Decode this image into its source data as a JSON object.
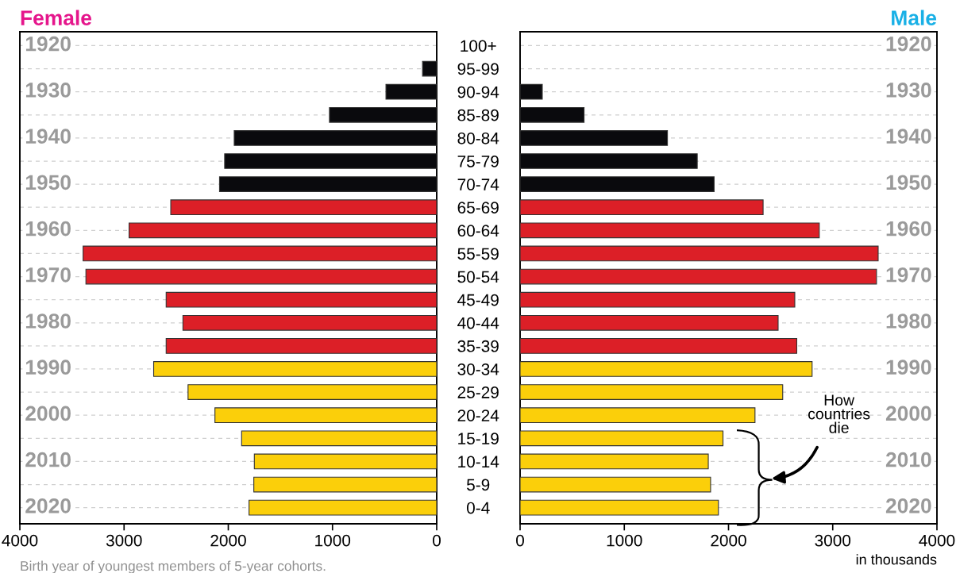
{
  "chart_data": [
    {
      "type": "bar",
      "orientation": "horizontal",
      "title": "Female",
      "tick_labels": "x",
      "grid": "y",
      "categories": [
        null,
        null,
        null,
        null,
        null,
        null,
        null,
        null,
        null,
        null,
        null,
        null,
        null,
        null,
        null,
        null,
        null,
        null,
        null,
        null,
        null
      ],
      "y2_categories": [
        "1920",
        null,
        "1930",
        null,
        "1940",
        null,
        "1950",
        null,
        "1960",
        null,
        "1970",
        null,
        "1980",
        null,
        "1990",
        null,
        "2000",
        null,
        "2010",
        null,
        "2020"
      ],
      "values": [
        null,
        136,
        487,
        1029,
        1943,
        2035,
        2084,
        2552,
        2952,
        3393,
        3366,
        2596,
        2435,
        2596,
        2716,
        2386,
        2128,
        1872,
        1750,
        1755,
        1801
      ],
      "colors": [
        "#0a0a0d",
        "#0a0a0d",
        "#0a0a0d",
        "#0a0a0d",
        "#0a0a0d",
        "#0a0a0d",
        "#0a0a0d",
        "#dc1f27",
        "#dc1f27",
        "#dc1f27",
        "#dc1f27",
        "#dc1f27",
        "#dc1f27",
        "#dc1f27",
        "#fbcf0a",
        "#fbcf0a",
        "#fbcf0a",
        "#fbcf0a",
        "#fbcf0a",
        "#fbcf0a",
        "#fbcf0a"
      ],
      "xlim": [
        4000,
        0
      ],
      "xticks": [
        4000,
        3000,
        2000,
        1000,
        0
      ],
      "annotations": [
        "Birth year of youngest members of 5-year cohorts."
      ]
    },
    {
      "type": "bar",
      "orientation": "horizontal",
      "title": "Male",
      "xlabel": "in thousands",
      "grid": "y",
      "categories": [
        "100+",
        "95-99",
        "90-94",
        "85-89",
        "80-84",
        "75-79",
        "70-74",
        "65-69",
        "60-64",
        "55-59",
        "50-54",
        "45-49",
        "40-44",
        "35-39",
        "30-34",
        "25-29",
        "20-24",
        "15-19",
        "10-14",
        "5-9",
        "0-4"
      ],
      "y2_categories": [
        "1920",
        null,
        "1930",
        null,
        "1940",
        null,
        "1950",
        null,
        "1960",
        null,
        "1970",
        null,
        "1980",
        null,
        "1990",
        null,
        "2000",
        null,
        "2010",
        null,
        "2020"
      ],
      "values": [
        null,
        null,
        213,
        614,
        1414,
        1700,
        1862,
        2332,
        2871,
        3436,
        3420,
        2636,
        2476,
        2655,
        2802,
        2520,
        2254,
        1947,
        1806,
        1828,
        1903
      ],
      "colors": [
        "#0a0a0d",
        "#0a0a0d",
        "#0a0a0d",
        "#0a0a0d",
        "#0a0a0d",
        "#0a0a0d",
        "#0a0a0d",
        "#dc1f27",
        "#dc1f27",
        "#dc1f27",
        "#dc1f27",
        "#dc1f27",
        "#dc1f27",
        "#dc1f27",
        "#fbcf0a",
        "#fbcf0a",
        "#fbcf0a",
        "#fbcf0a",
        "#fbcf0a",
        "#fbcf0a",
        "#fbcf0a"
      ],
      "xlim": [
        0,
        4000
      ],
      "xticks": [
        0,
        1000,
        2000,
        3000,
        4000
      ],
      "annotations": [
        "How\ncountries\ndie"
      ]
    }
  ]
}
